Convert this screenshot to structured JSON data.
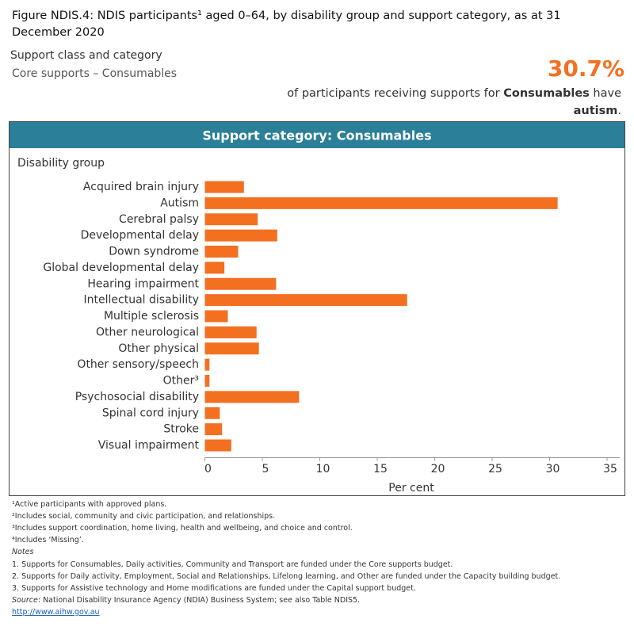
{
  "header": {
    "title": "Figure NDIS.4: NDIS participants¹ aged 0–64, by disability group and support category, as at 31 December 2020",
    "selector_label": "Support class and category",
    "selector_value": "Core supports – Consumables"
  },
  "summary": {
    "big_number": "30.7%",
    "text_prefix": "of participants receiving supports for ",
    "text_bold_1": "Consumables",
    "text_mid": " have",
    "text_bold_2": "autism",
    "text_suffix": "."
  },
  "chart_data": {
    "type": "hbar",
    "title": "Support category: Consumables",
    "y_axis_label": "Disability group",
    "x_axis_label": "Per cent",
    "categories": [
      "Acquired brain injury",
      "Autism",
      "Cerebral palsy",
      "Developmental delay",
      "Down syndrome",
      "Global developmental delay",
      "Hearing impairment",
      "Intellectual disability",
      "Multiple sclerosis",
      "Other neurological",
      "Other physical",
      "Other sensory/speech",
      "Other³",
      "Psychosocial disability",
      "Spinal cord injury",
      "Stroke",
      "Visual impairment"
    ],
    "values": [
      3.4,
      30.7,
      4.6,
      6.3,
      2.9,
      1.7,
      6.2,
      17.6,
      2.0,
      4.5,
      4.7,
      0.4,
      0.4,
      8.2,
      1.3,
      1.5,
      2.3
    ],
    "color": "#f37021",
    "header_color": "#2b7f98",
    "xlim": [
      0,
      36
    ],
    "xticks": [
      0,
      5,
      10,
      15,
      20,
      25,
      30,
      35
    ],
    "grid": false
  },
  "footer": {
    "footnotes": [
      "¹Active participants with approved plans.",
      "²Includes social, community and civic participation, and relationships.",
      "³Includes support coordination, home living, health and wellbeing, and choice and control.",
      "⁴Includes ‘Missing’."
    ],
    "notes_heading": "Notes",
    "notes": [
      "1. Supports for Consumables, Daily activities, Community and Transport are funded under the Core supports budget.",
      "2. Supports for Daily activity, Employment, Social and Relationships, Lifelong learning, and Other are funded under the Capacity building budget.",
      "3. Supports for Assistive technology and Home modifications are funded under the Capital support budget."
    ],
    "source_label": "Source",
    "source_text": ": National Disability Insurance Agency (NDIA) Business System; see also Table NDIS5.",
    "link": "http://www.aihw.gov.au"
  }
}
